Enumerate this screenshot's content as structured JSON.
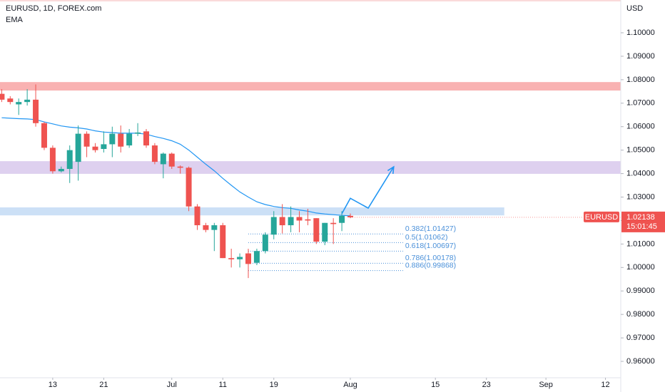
{
  "chart_data": {
    "type": "candlestick",
    "title": "EURUSD, 1D, FOREX.com",
    "indicator_label": "EMA",
    "y_axis_label": "USD",
    "up_color": "#26a69a",
    "down_color": "#ef5350",
    "x": [
      -6,
      -5,
      -4,
      -3,
      -2,
      -1,
      0,
      1,
      2,
      3,
      4,
      5,
      6,
      7,
      8,
      9,
      10,
      11,
      12,
      13,
      14,
      15,
      16,
      17,
      18,
      19,
      20,
      21,
      22,
      23,
      24,
      25,
      26,
      27,
      28,
      29,
      30,
      31,
      32,
      33,
      34,
      35
    ],
    "open": [
      1.074,
      1.072,
      1.0695,
      1.0705,
      1.0715,
      1.0615,
      1.051,
      1.041,
      1.042,
      1.045,
      1.057,
      1.0515,
      1.0505,
      1.0525,
      1.057,
      1.052,
      1.057,
      1.058,
      1.052,
      1.044,
      1.0485,
      1.043,
      1.0425,
      1.026,
      1.018,
      1.016,
      1.018,
      1.004,
      1.0035,
      1.006,
      1.002,
      1.007,
      1.014,
      1.0215,
      1.018,
      1.0215,
      1.0205,
      1.021,
      1.011,
      1.019,
      1.019,
      1.022
    ],
    "high": [
      1.076,
      1.073,
      1.072,
      1.076,
      1.078,
      1.062,
      1.052,
      1.043,
      1.052,
      1.0605,
      1.058,
      1.053,
      1.058,
      1.06,
      1.0605,
      1.059,
      1.0615,
      1.059,
      1.053,
      1.049,
      1.049,
      1.0435,
      1.043,
      1.027,
      1.019,
      1.019,
      1.019,
      1.008,
      1.006,
      1.008,
      1.008,
      1.015,
      1.024,
      1.027,
      1.026,
      1.024,
      1.025,
      1.021,
      1.019,
      1.021,
      1.024,
      1.023
    ],
    "low": [
      1.0705,
      1.0695,
      1.065,
      1.069,
      1.06,
      1.05,
      1.04,
      1.0405,
      1.036,
      1.037,
      1.047,
      1.049,
      1.049,
      1.047,
      1.049,
      1.051,
      1.056,
      1.051,
      1.044,
      1.038,
      1.042,
      1.04,
      1.024,
      1.016,
      1.015,
      1.007,
      1.004,
      1.0,
      1.0,
      0.9955,
      1.001,
      1.006,
      1.012,
      1.0145,
      1.015,
      1.015,
      1.018,
      1.01,
      1.0095,
      1.01,
      1.0155,
      1.021
    ],
    "close": [
      1.0715,
      1.0705,
      1.0705,
      1.0715,
      1.0615,
      1.051,
      1.041,
      1.042,
      1.05,
      1.057,
      1.0515,
      1.05,
      1.0525,
      1.057,
      1.0515,
      1.057,
      1.0575,
      1.052,
      1.045,
      1.0485,
      1.043,
      1.0425,
      1.026,
      1.018,
      1.016,
      1.018,
      1.004,
      1.0035,
      1.0045,
      1.0015,
      1.007,
      1.014,
      1.0215,
      1.018,
      1.0215,
      1.02,
      1.02,
      1.011,
      1.019,
      1.0185,
      1.022,
      1.02138
    ],
    "ema": {
      "name": "EMA",
      "color": "#2196f3",
      "values": [
        1.0638,
        1.0636,
        1.0634,
        1.0633,
        1.063,
        1.062,
        1.0612,
        1.0603,
        1.0598,
        1.0595,
        1.059,
        1.0582,
        1.0577,
        1.0575,
        1.0572,
        1.0572,
        1.0572,
        1.0568,
        1.0558,
        1.055,
        1.054,
        1.0525,
        1.05,
        1.047,
        1.044,
        1.0412,
        1.038,
        1.035,
        1.0322,
        1.03,
        1.028,
        1.0268,
        1.026,
        1.0255,
        1.0252,
        1.0245,
        1.024,
        1.0232,
        1.0228,
        1.0225,
        1.0222,
        1.022
      ]
    },
    "xlim": [
      -6.2,
      66.8
    ],
    "ylim": [
      0.95302,
      1.11397
    ],
    "xticks": [
      {
        "value": 0,
        "label": "13"
      },
      {
        "value": 6,
        "label": "21"
      },
      {
        "value": 14,
        "label": "Jul"
      },
      {
        "value": 20,
        "label": "11"
      },
      {
        "value": 26,
        "label": "19"
      },
      {
        "value": 35,
        "label": "Aug"
      },
      {
        "value": 45,
        "label": "15"
      },
      {
        "value": 51,
        "label": "23"
      },
      {
        "value": 58,
        "label": "Sep"
      },
      {
        "value": 65,
        "label": "12"
      }
    ],
    "yticks": [
      {
        "value": 0.96,
        "label": "0.96000"
      },
      {
        "value": 0.97,
        "label": "0.97000"
      },
      {
        "value": 0.98,
        "label": "0.98000"
      },
      {
        "value": 0.99,
        "label": "0.99000"
      },
      {
        "value": 1.0,
        "label": "1.00000"
      },
      {
        "value": 1.01,
        "label": "1.01000"
      },
      {
        "value": 1.02,
        "label": "1.02000"
      },
      {
        "value": 1.03,
        "label": "1.03000"
      },
      {
        "value": 1.04,
        "label": "1.04000"
      },
      {
        "value": 1.05,
        "label": "1.05000"
      },
      {
        "value": 1.06,
        "label": "1.06000"
      },
      {
        "value": 1.07,
        "label": "1.07000"
      },
      {
        "value": 1.08,
        "label": "1.08000"
      },
      {
        "value": 1.09,
        "label": "1.09000"
      },
      {
        "value": 1.1,
        "label": "1.10000"
      }
    ],
    "zones": [
      {
        "color": "#f8a5a5",
        "range": [
          1.0754,
          1.079
        ]
      },
      {
        "color": "#d8c8ec",
        "range": [
          1.0399,
          1.0453
        ]
      },
      {
        "color": "#c3daf5",
        "range": [
          1.0222,
          1.0256
        ],
        "x_end": 53.1
      }
    ],
    "fib_color": "#4a90d9",
    "fib_x": [
      23,
      41.2
    ],
    "fib_levels": [
      {
        "value": 1.01427,
        "label": "0.382(1.01427)"
      },
      {
        "value": 1.01062,
        "label": "0.5(1.01062)"
      },
      {
        "value": 1.00697,
        "label": "0.618(1.00697)"
      },
      {
        "value": 1.00178,
        "label": "0.786(1.00178)"
      },
      {
        "value": 0.99868,
        "label": "0.886(0.99868)"
      }
    ],
    "projection": {
      "color": "#2196f3",
      "x": [
        34,
        35,
        37.1,
        40.1
      ],
      "y": [
        1.0229,
        1.0295,
        1.0253,
        1.0429
      ]
    },
    "last_price": {
      "symbol": "EURUSD",
      "value": 1.02138,
      "countdown": "15:01:45",
      "color": "#ef5350"
    }
  }
}
